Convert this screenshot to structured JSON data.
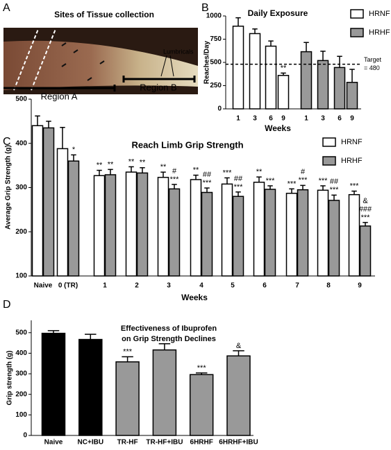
{
  "panels": {
    "letters": [
      "A",
      "B",
      "C",
      "D"
    ]
  },
  "panel_a": {
    "title": "Sites of Tissue collection",
    "labels": {
      "lumbricals": "Lumbricals",
      "region_a": "Region A",
      "region_b": "Region B"
    }
  },
  "chart_data": [
    {
      "type": "bar",
      "title": "Daily  Exposure",
      "y_label": "Reaches/Day",
      "x_label": "Weeks",
      "categories": [
        "1",
        "3",
        "6",
        "9"
      ],
      "series": [
        {
          "name": "HRNF",
          "color": "#ffffff",
          "values": [
            890,
            810,
            675,
            360
          ],
          "errors": [
            90,
            50,
            55,
            25
          ],
          "annotations": [
            null,
            null,
            null,
            "**"
          ]
        },
        {
          "name": "HRHF",
          "color": "#999999",
          "values": [
            615,
            520,
            445,
            285
          ],
          "errors": [
            100,
            100,
            120,
            140
          ]
        }
      ],
      "reference_line": {
        "value": 480,
        "label": [
          "Target",
          "= 480"
        ]
      },
      "ylim": [
        0,
        1000
      ],
      "yticks": [
        0,
        250,
        500,
        750,
        1000
      ]
    },
    {
      "type": "bar",
      "title": "Reach Limb Grip Strength",
      "y_label": "Average Grip Strength (g)",
      "x_label": "Weeks",
      "categories": [
        "Naive",
        "0 (TR)",
        "1",
        "2",
        "3",
        "4",
        "5",
        "6",
        "7",
        "8",
        "9"
      ],
      "series": [
        {
          "name": "HRNF",
          "color": "#ffffff",
          "values": [
            440,
            388,
            327,
            335,
            323,
            318,
            308,
            312,
            287,
            294,
            284
          ],
          "errors": [
            22,
            48,
            12,
            12,
            12,
            10,
            14,
            12,
            10,
            10,
            8
          ],
          "annotations": [
            null,
            null,
            "**",
            "**",
            "**",
            "**",
            "***",
            "**",
            "***",
            "***",
            "***"
          ]
        },
        {
          "name": "HRHF",
          "color": "#999999",
          "values": [
            435,
            360,
            329,
            333,
            297,
            289,
            280,
            296,
            295,
            271,
            213
          ],
          "errors": [
            15,
            14,
            12,
            12,
            10,
            10,
            10,
            8,
            10,
            12,
            8
          ],
          "annotations": [
            null,
            "*",
            "**",
            "**",
            "***",
            "***",
            "***",
            "***",
            "***",
            "***",
            "***"
          ],
          "annotations2": [
            null,
            null,
            null,
            null,
            "#",
            "##",
            "##",
            null,
            "#",
            "##",
            "###"
          ],
          "annotations3": [
            null,
            null,
            null,
            null,
            null,
            null,
            null,
            null,
            null,
            null,
            "&"
          ]
        }
      ],
      "ylim": [
        100,
        500
      ],
      "yticks": [
        100,
        200,
        300,
        400,
        500
      ]
    },
    {
      "type": "bar",
      "title": [
        "Effectiveness of Ibuprofen",
        "on Grip Strength Declines"
      ],
      "y_label": "Grip strength (g)",
      "categories": [
        "Naive",
        "NC+IBU",
        "TR-HF",
        "TR-HF+IBU",
        "6HRHF",
        "6HRHF+IBU"
      ],
      "values": [
        497,
        467,
        358,
        416,
        296,
        387
      ],
      "errors": [
        13,
        25,
        25,
        30,
        8,
        25
      ],
      "colors": [
        "#000000",
        "#000000",
        "#999999",
        "#999999",
        "#999999",
        "#999999"
      ],
      "annotations": [
        null,
        null,
        "***",
        null,
        "***",
        "&"
      ],
      "ylim": [
        0,
        560
      ],
      "yticks": [
        0,
        100,
        200,
        300,
        400,
        500
      ]
    }
  ]
}
